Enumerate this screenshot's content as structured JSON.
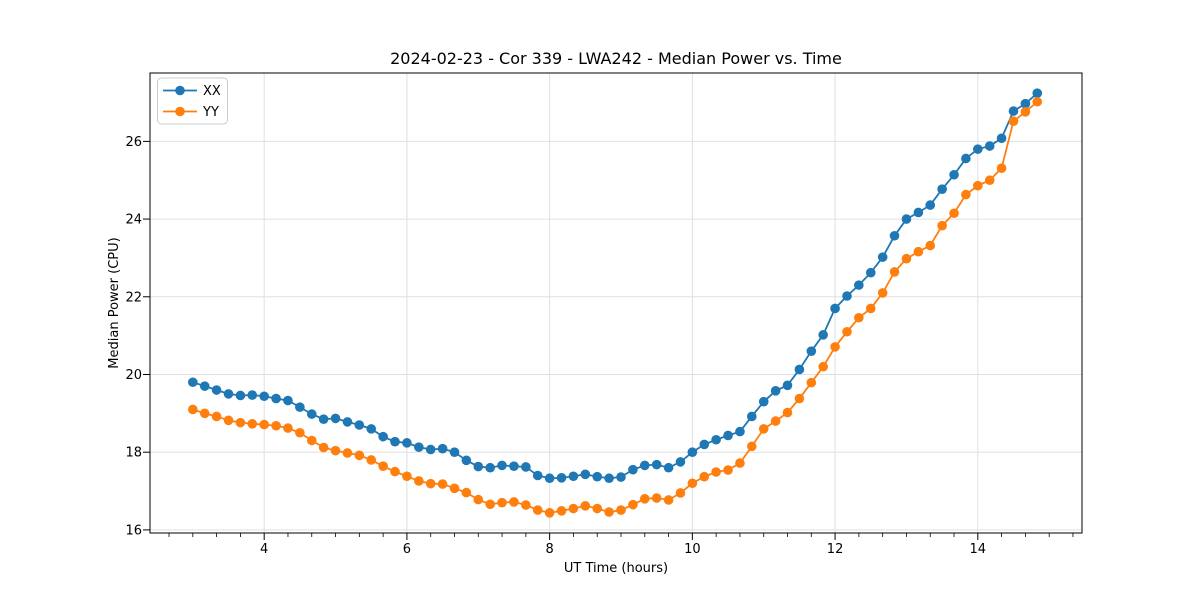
{
  "chart_data": {
    "type": "line",
    "title": "2024-02-23 - Cor 339 - LWA242 - Median Power vs. Time",
    "xlabel": "UT Time (hours)",
    "ylabel": "Median Power (CPU)",
    "xlim": [
      2.4,
      15.46
    ],
    "ylim": [
      15.92,
      27.76
    ],
    "x_major_ticks": [
      4,
      6,
      8,
      10,
      12,
      14
    ],
    "x_minor_tick_step": 0.333,
    "y_major_ticks": [
      16,
      18,
      20,
      22,
      24,
      26
    ],
    "grid": true,
    "grid_color": "#e0e0e0",
    "axis_color": "#000000",
    "background_color": "#ffffff",
    "legend_position": "upper left",
    "legend": {
      "border_color": "#cccccc",
      "background": "#ffffff"
    },
    "x": [
      3.0,
      3.167,
      3.333,
      3.5,
      3.667,
      3.833,
      4.0,
      4.167,
      4.333,
      4.5,
      4.667,
      4.833,
      5.0,
      5.167,
      5.333,
      5.5,
      5.667,
      5.833,
      6.0,
      6.167,
      6.333,
      6.5,
      6.667,
      6.833,
      7.0,
      7.167,
      7.333,
      7.5,
      7.667,
      7.833,
      8.0,
      8.167,
      8.333,
      8.5,
      8.667,
      8.833,
      9.0,
      9.167,
      9.333,
      9.5,
      9.667,
      9.833,
      10.0,
      10.167,
      10.333,
      10.5,
      10.667,
      10.833,
      11.0,
      11.167,
      11.333,
      11.5,
      11.667,
      11.833,
      12.0,
      12.167,
      12.333,
      12.5,
      12.667,
      12.833,
      13.0,
      13.167,
      13.333,
      13.5,
      13.667,
      13.833,
      14.0,
      14.167,
      14.333,
      14.5,
      14.667,
      14.833
    ],
    "series": [
      {
        "name": "XX",
        "color": "#1f77b4",
        "values": [
          19.8,
          19.7,
          19.6,
          19.5,
          19.46,
          19.47,
          19.44,
          19.38,
          19.33,
          19.16,
          18.98,
          18.85,
          18.87,
          18.78,
          18.7,
          18.6,
          18.4,
          18.27,
          18.24,
          18.13,
          18.07,
          18.09,
          18.0,
          17.79,
          17.63,
          17.6,
          17.66,
          17.64,
          17.62,
          17.4,
          17.33,
          17.34,
          17.38,
          17.43,
          17.37,
          17.33,
          17.36,
          17.55,
          17.66,
          17.68,
          17.6,
          17.75,
          18.0,
          18.2,
          18.32,
          18.43,
          18.53,
          18.92,
          19.3,
          19.58,
          19.72,
          20.13,
          20.6,
          21.02,
          21.7,
          22.02,
          22.3,
          22.62,
          23.02,
          23.57,
          24.0,
          24.17,
          24.36,
          24.77,
          25.14,
          25.56,
          25.8,
          25.88,
          26.08,
          26.78,
          26.97,
          27.24
        ]
      },
      {
        "name": "YY",
        "color": "#ff7f0e",
        "values": [
          19.1,
          19.0,
          18.92,
          18.82,
          18.76,
          18.73,
          18.71,
          18.68,
          18.62,
          18.5,
          18.3,
          18.12,
          18.04,
          17.98,
          17.92,
          17.8,
          17.64,
          17.5,
          17.38,
          17.26,
          17.19,
          17.18,
          17.07,
          16.96,
          16.78,
          16.66,
          16.7,
          16.72,
          16.64,
          16.51,
          16.44,
          16.49,
          16.55,
          16.62,
          16.55,
          16.46,
          16.51,
          16.65,
          16.8,
          16.82,
          16.77,
          16.95,
          17.2,
          17.37,
          17.49,
          17.54,
          17.72,
          18.15,
          18.6,
          18.8,
          19.02,
          19.38,
          19.79,
          20.2,
          20.71,
          21.1,
          21.46,
          21.7,
          22.1,
          22.64,
          22.98,
          23.16,
          23.32,
          23.83,
          24.15,
          24.63,
          24.86,
          25.0,
          25.31,
          26.52,
          26.76,
          27.02
        ]
      }
    ]
  }
}
